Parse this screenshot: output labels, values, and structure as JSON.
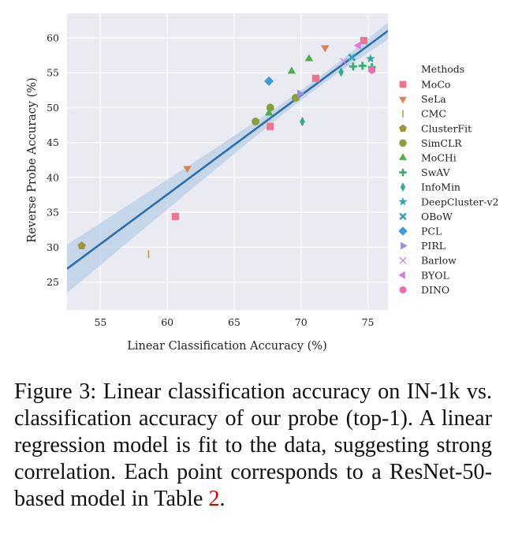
{
  "chart_data": {
    "type": "scatter",
    "xlabel": "Linear Classification Accuracy (%)",
    "ylabel": "Reverse Probe Accuracy (%)",
    "xlim": [
      52.5,
      76.5
    ],
    "ylim": [
      21,
      63.5
    ],
    "xticks": [
      55,
      60,
      65,
      70,
      75
    ],
    "yticks": [
      25,
      30,
      35,
      40,
      45,
      50,
      55,
      60
    ],
    "grid": true,
    "legend_title": "Methods",
    "legend_placement": "right, outside plot",
    "regression": {
      "x": [
        52.5,
        76.5
      ],
      "y": [
        26.9,
        61.0
      ],
      "color": "#2b6fad",
      "ci_color": "#b9cfe6"
    },
    "series": [
      {
        "name": "MoCo",
        "marker": "square",
        "color": "#e8778f",
        "points": [
          [
            60.6,
            34.4
          ],
          [
            67.7,
            47.3
          ],
          [
            71.1,
            54.2
          ],
          [
            74.7,
            59.6
          ]
        ]
      },
      {
        "name": "SeLa",
        "marker": "triangle-down",
        "color": "#dd8452",
        "points": [
          [
            61.5,
            41.3
          ],
          [
            71.8,
            58.6
          ]
        ]
      },
      {
        "name": "CMC",
        "marker": "vline",
        "color": "#c3974e",
        "points": [
          [
            58.6,
            29.0
          ]
        ]
      },
      {
        "name": "ClusterFit",
        "marker": "pentagon",
        "color": "#a19438",
        "points": [
          [
            53.6,
            30.2
          ]
        ]
      },
      {
        "name": "SimCLR",
        "marker": "circle",
        "color": "#8aa03a",
        "points": [
          [
            66.6,
            48.0
          ],
          [
            67.7,
            50.0
          ],
          [
            69.6,
            51.4
          ]
        ]
      },
      {
        "name": "MoCHi",
        "marker": "triangle-up",
        "color": "#50ad49",
        "points": [
          [
            67.6,
            49.2
          ],
          [
            69.3,
            55.2
          ],
          [
            70.6,
            57.0
          ]
        ]
      },
      {
        "name": "SwAV",
        "marker": "plus",
        "color": "#37ad6f",
        "points": [
          [
            73.9,
            55.9
          ],
          [
            74.6,
            56.0
          ],
          [
            75.3,
            55.8
          ]
        ]
      },
      {
        "name": "InfoMin",
        "marker": "thin-diamond",
        "color": "#33ab8e",
        "points": [
          [
            70.1,
            48.0
          ],
          [
            73.0,
            55.1
          ]
        ]
      },
      {
        "name": "DeepCluster-v2",
        "marker": "star",
        "color": "#35a7a4",
        "points": [
          [
            75.2,
            57.0
          ]
        ]
      },
      {
        "name": "OBoW",
        "marker": "x",
        "color": "#37a1bb",
        "points": [
          [
            73.8,
            57.2
          ]
        ]
      },
      {
        "name": "PCL",
        "marker": "diamond",
        "color": "#3d9bd3",
        "points": [
          [
            67.6,
            53.8
          ]
        ]
      },
      {
        "name": "PIRL",
        "marker": "triangle-right",
        "color": "#9a8fde",
        "points": [
          [
            69.9,
            52.0
          ]
        ]
      },
      {
        "name": "Barlow",
        "marker": "x-thin",
        "color": "#c48ae8",
        "points": [
          [
            73.2,
            56.6
          ]
        ]
      },
      {
        "name": "BYOL",
        "marker": "triangle-left",
        "color": "#dc7ce2",
        "points": [
          [
            74.3,
            58.9
          ]
        ]
      },
      {
        "name": "DINO",
        "marker": "hexagon",
        "color": "#e86fab",
        "points": [
          [
            75.3,
            55.4
          ]
        ]
      }
    ]
  },
  "caption": {
    "text": "Figure 3: Linear classification accuracy on IN-1k vs. classification accuracy of our probe (top-1). A linear regression model is fit to the data, suggesting strong correlation. Each point corresponds to a ResNet-50-based model in Table ",
    "ref": "2",
    "end": "."
  }
}
